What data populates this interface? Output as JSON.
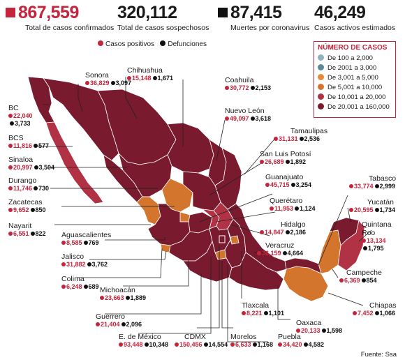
{
  "stats": [
    {
      "value": "867,559",
      "label": "Total de casos confirmados",
      "color": "#c4243c"
    },
    {
      "value": "320,112",
      "label": "Total de casos sospechosos",
      "color": ""
    },
    {
      "value": "87,415",
      "label": "Muertes por coronavirus",
      "color": "#111111"
    },
    {
      "value": "46,249",
      "label": "Casos activos estimados",
      "color": ""
    }
  ],
  "top_legend": {
    "positive": "Casos positivos",
    "deaths": "Defunciones",
    "positive_color": "#c4243c",
    "deaths_color": "#111111"
  },
  "legend": {
    "title": "NÚMERO DE CASOS",
    "items": [
      {
        "label": "De 100 a 2,000",
        "color": "#8fb2bd"
      },
      {
        "label": "De 2001 a 3,000",
        "color": "#5d8a97"
      },
      {
        "label": "De 3,001 a 5,000",
        "color": "#e8893a"
      },
      {
        "label": "De 5,001 a 10,000",
        "color": "#d4752d"
      },
      {
        "label": "De 10,001 a 20,000",
        "color": "#b23245"
      },
      {
        "label": "De 20,001 a 160,000",
        "color": "#7a1a2e"
      }
    ]
  },
  "states": [
    {
      "name": "Sonora",
      "cases": "36,829",
      "deaths": "3,097"
    },
    {
      "name": "Chihuahua",
      "cases": "15,148",
      "deaths": "1,671"
    },
    {
      "name": "Coahuila",
      "cases": "30,772",
      "deaths": "2,153"
    },
    {
      "name": "Nuevo León",
      "cases": "49,097",
      "deaths": "3,618"
    },
    {
      "name": "BC",
      "cases": "22,040",
      "deaths": "3,733"
    },
    {
      "name": "BCS",
      "cases": "11,816",
      "deaths": "577"
    },
    {
      "name": "Sinaloa",
      "cases": "20,997",
      "deaths": "3,504"
    },
    {
      "name": "Durango",
      "cases": "11,746",
      "deaths": "730"
    },
    {
      "name": "Zacatecas",
      "cases": "9,652",
      "deaths": "850"
    },
    {
      "name": "Nayarit",
      "cases": "6,551",
      "deaths": "822"
    },
    {
      "name": "Aguascalientes",
      "cases": "8,585",
      "deaths": "769"
    },
    {
      "name": "Jalisco",
      "cases": "31,882",
      "deaths": "3,762"
    },
    {
      "name": "Colima",
      "cases": "6,248",
      "deaths": "689"
    },
    {
      "name": "Michoacán",
      "cases": "23,663",
      "deaths": "1,889"
    },
    {
      "name": "Guerrero",
      "cases": "21,404",
      "deaths": "2,096"
    },
    {
      "name": "E. de México",
      "cases": "93,448",
      "deaths": "10,348"
    },
    {
      "name": "CDMX",
      "cases": "150,456",
      "deaths": "14,554"
    },
    {
      "name": "Morelos",
      "cases": "6,633",
      "deaths": "1,168"
    },
    {
      "name": "Puebla",
      "cases": "34,420",
      "deaths": "4,582"
    },
    {
      "name": "Tlaxcala",
      "cases": "8,221",
      "deaths": "1,101"
    },
    {
      "name": "Oaxaca",
      "cases": "20,133",
      "deaths": "1,598"
    },
    {
      "name": "Chiapas",
      "cases": "7,452",
      "deaths": "1,066"
    },
    {
      "name": "Tamaulipas",
      "cases": "31,131",
      "deaths": "2,536"
    },
    {
      "name": "San Luis Potosí",
      "cases": "26,689",
      "deaths": "1,892"
    },
    {
      "name": "Guanajuato",
      "cases": "45,715",
      "deaths": "3,254"
    },
    {
      "name": "Querétaro",
      "cases": "11,953",
      "deaths": "1,124"
    },
    {
      "name": "Hidalgo",
      "cases": "14,847",
      "deaths": "2,186"
    },
    {
      "name": "Veracruz",
      "cases": "36,159",
      "deaths": "4,664"
    },
    {
      "name": "Tabasco",
      "cases": "33,774",
      "deaths": "2,999"
    },
    {
      "name": "Yucatán",
      "cases": "20,595",
      "deaths": "1,734"
    },
    {
      "name": "Quintana Roo",
      "cases": "13,134",
      "deaths": "1,795"
    },
    {
      "name": "Campeche",
      "cases": "6,369",
      "deaths": "854"
    }
  ],
  "source": "Fuente: Ssa"
}
